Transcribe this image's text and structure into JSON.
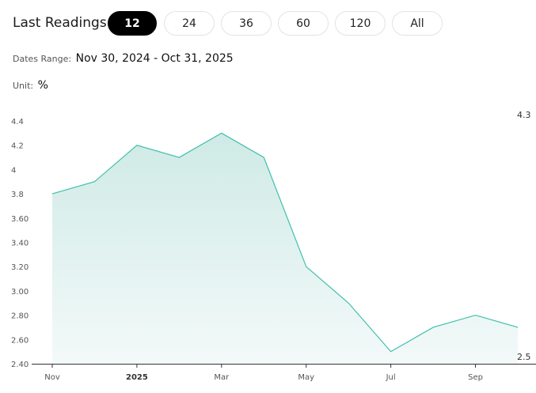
{
  "header": {
    "label": "Last Readings:",
    "options": [
      {
        "label": "12",
        "active": true
      },
      {
        "label": "24",
        "active": false
      },
      {
        "label": "36",
        "active": false
      },
      {
        "label": "60",
        "active": false
      },
      {
        "label": "120",
        "active": false
      },
      {
        "label": "All",
        "active": false
      }
    ]
  },
  "dates": {
    "label": "Dates Range:",
    "value": "Nov 30, 2024 - Oct 31, 2025"
  },
  "unit": {
    "label": "Unit:",
    "value": "%"
  },
  "colors": {
    "line": "#3fbfad",
    "fill": "#cfeae6",
    "active_pill": "#000000"
  },
  "chart_data": {
    "type": "area",
    "x": [
      "Nov 2024",
      "Dec 2024",
      "Jan 2025",
      "Feb 2025",
      "Mar 2025",
      "Apr 2025",
      "May 2025",
      "Jun 2025",
      "Jul 2025",
      "Aug 2025",
      "Sep 2025",
      "Oct 2025"
    ],
    "series": [
      {
        "values": [
          3.8,
          3.9,
          4.2,
          4.1,
          4.3,
          4.1,
          3.2,
          2.9,
          2.5,
          2.7,
          2.8,
          2.7
        ]
      }
    ],
    "y_ticks": [
      "4.4",
      "4.2",
      "4",
      "3.8",
      "3.60",
      "3.40",
      "3.20",
      "3.00",
      "2.80",
      "2.60",
      "2.40"
    ],
    "y_tick_values": [
      4.4,
      4.2,
      4.0,
      3.8,
      3.6,
      3.4,
      3.2,
      3.0,
      2.8,
      2.6,
      2.4
    ],
    "x_ticks": [
      {
        "label": "Nov",
        "index": 0,
        "bold": false
      },
      {
        "label": "2025",
        "index": 2,
        "bold": true
      },
      {
        "label": "Mar",
        "index": 4,
        "bold": false
      },
      {
        "label": "May",
        "index": 6,
        "bold": false
      },
      {
        "label": "Jul",
        "index": 8,
        "bold": false
      },
      {
        "label": "Sep",
        "index": 10,
        "bold": false
      }
    ],
    "ylim": [
      2.4,
      4.4
    ],
    "max_label": "4.3",
    "min_label": "2.5",
    "grid": false
  }
}
